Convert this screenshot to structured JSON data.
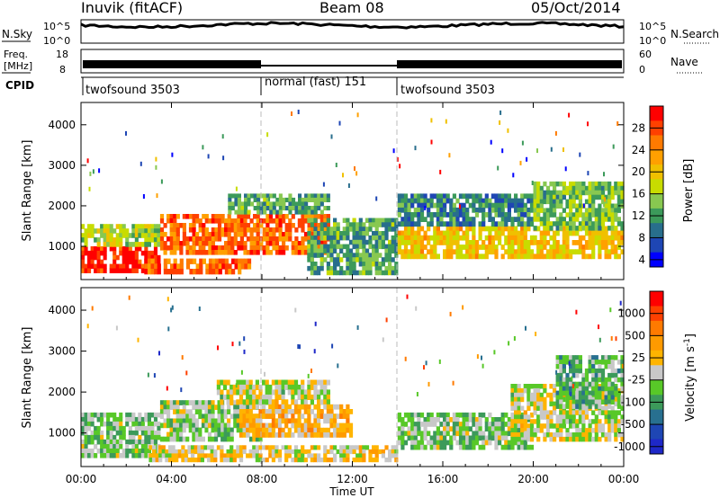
{
  "header": {
    "station": "Inuvik (fitACF)",
    "beam": "Beam 08",
    "date": "05/Oct/2014"
  },
  "top_panels": {
    "nsky": {
      "label": "N.Sky",
      "left_ticks": [
        "10^5",
        "10^0"
      ],
      "right_ticks": [
        "10^5",
        "10^0"
      ],
      "right_label": "N.Search",
      "right_line_style": "dotted"
    },
    "freq": {
      "label_line1": "Freq.",
      "label_line2": "[MHz]",
      "left_ticks": [
        "18",
        "8"
      ],
      "right_ticks": [
        "60",
        "0"
      ],
      "right_label": "Nave",
      "right_line_style": "dotted"
    },
    "cpid": {
      "label": "CPID",
      "segments": [
        {
          "name": "twofsound",
          "id": "3503",
          "start_hour": 0,
          "end_hour": 8
        },
        {
          "name": "normal (fast)",
          "id": "151",
          "start_hour": 8,
          "end_hour": 14
        },
        {
          "name": "twofsound",
          "id": "3503",
          "start_hour": 14,
          "end_hour": 24
        }
      ]
    }
  },
  "chart_data": [
    {
      "type": "heatmap",
      "title": "",
      "xlabel": "Time UT",
      "ylabel": "Slant Range [km]",
      "xlim_hours": [
        0,
        24
      ],
      "ylim": [
        180,
        4550
      ],
      "x_ticks": [
        "00:00",
        "04:00",
        "08:00",
        "12:00",
        "16:00",
        "20:00",
        "00:00"
      ],
      "y_ticks": [
        1000,
        2000,
        3000,
        4000
      ],
      "colorbar": {
        "label": "Power [dB]",
        "ticks": [
          "28",
          "24",
          "20",
          "16",
          "12",
          "8",
          "4"
        ],
        "colors": [
          "#ff0000",
          "#ff4000",
          "#ff7a00",
          "#ffa000",
          "#f0c000",
          "#c8dc00",
          "#88c850",
          "#3c9a5a",
          "#286e8c",
          "#1e46b4",
          "#0000ff"
        ],
        "range": [
          0,
          30
        ]
      },
      "regions": [
        {
          "t_start": 0.0,
          "t_end": 3.5,
          "range_low": 350,
          "range_high": 1000,
          "level": 28
        },
        {
          "t_start": 0.0,
          "t_end": 3.5,
          "range_low": 1000,
          "range_high": 1550,
          "level": 14
        },
        {
          "t_start": 2.8,
          "t_end": 7.5,
          "range_low": 320,
          "range_high": 700,
          "level": 24
        },
        {
          "t_start": 3.5,
          "t_end": 11.0,
          "range_low": 800,
          "range_high": 1800,
          "level": 24
        },
        {
          "t_start": 6.5,
          "t_end": 11.0,
          "range_low": 1800,
          "range_high": 2300,
          "level": 10
        },
        {
          "t_start": 10.0,
          "t_end": 14.0,
          "range_low": 300,
          "range_high": 1700,
          "level": 10
        },
        {
          "t_start": 14.0,
          "t_end": 24.0,
          "range_low": 700,
          "range_high": 1500,
          "level": 18
        },
        {
          "t_start": 14.0,
          "t_end": 20.0,
          "range_low": 1500,
          "range_high": 2300,
          "level": 8
        },
        {
          "t_start": 20.0,
          "t_end": 24.0,
          "range_low": 1400,
          "range_high": 2600,
          "level": 12
        }
      ]
    },
    {
      "type": "heatmap",
      "title": "",
      "xlabel": "Time UT",
      "ylabel": "Slant Range [km]",
      "xlim_hours": [
        0,
        24
      ],
      "ylim": [
        180,
        4550
      ],
      "x_ticks": [
        "00:00",
        "04:00",
        "08:00",
        "12:00",
        "16:00",
        "20:00",
        "00:00"
      ],
      "y_ticks": [
        1000,
        2000,
        3000,
        4000
      ],
      "colorbar": {
        "label": "Velocity [m s^-1]",
        "ticks": [
          "1000",
          "500",
          "25",
          "-25",
          "-100",
          "-500",
          "-1000"
        ],
        "colors": [
          "#ff0000",
          "#ff4000",
          "#ff7a00",
          "#ff9a00",
          "#ffb400",
          "#c8c8c8",
          "#58c828",
          "#3c9a5a",
          "#287090",
          "#1e46b4",
          "#1e28c8"
        ],
        "range": [
          -1200,
          1200
        ]
      },
      "regions": [
        {
          "t_start": 0.0,
          "t_end": 3.5,
          "range_low": 400,
          "range_high": 1500,
          "level": -200
        },
        {
          "t_start": 3.5,
          "t_end": 8.0,
          "range_low": 800,
          "range_high": 1800,
          "level": -150
        },
        {
          "t_start": 6.0,
          "t_end": 11.0,
          "range_low": 1700,
          "range_high": 2300,
          "level": 0
        },
        {
          "t_start": 7.0,
          "t_end": 12.0,
          "range_low": 900,
          "range_high": 1700,
          "level": 300
        },
        {
          "t_start": 3.0,
          "t_end": 14.0,
          "range_low": 300,
          "range_high": 700,
          "level": 100
        },
        {
          "t_start": 14.0,
          "t_end": 20.0,
          "range_low": 600,
          "range_high": 1500,
          "level": -200
        },
        {
          "t_start": 19.0,
          "t_end": 24.0,
          "range_low": 800,
          "range_high": 2200,
          "level": 0
        },
        {
          "t_start": 21.0,
          "t_end": 24.0,
          "range_low": 1600,
          "range_high": 2900,
          "level": -300
        }
      ]
    }
  ]
}
